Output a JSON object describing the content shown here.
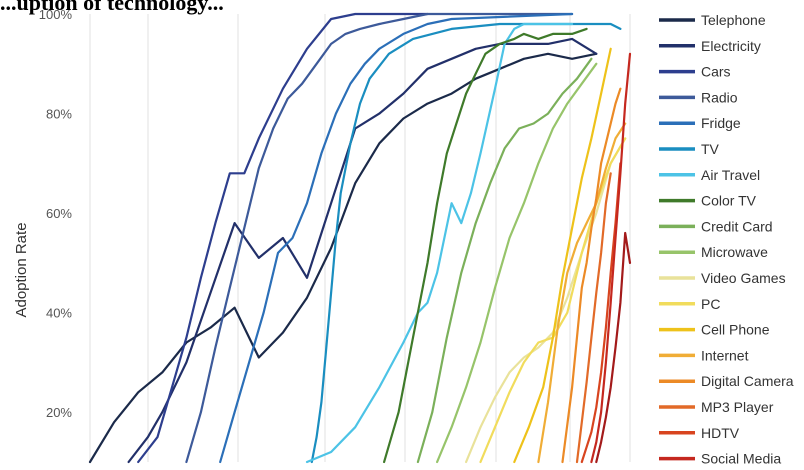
{
  "header": {
    "title_fragment": "...uption of technology..."
  },
  "chart_data": {
    "type": "line",
    "title": "",
    "xlabel": "",
    "ylabel": "Adoption Rate",
    "ylim": [
      10,
      100
    ],
    "xlim": [
      1900,
      2012
    ],
    "yticks": [
      20,
      40,
      60,
      80,
      100
    ],
    "ytick_labels": [
      "20%",
      "40%",
      "60%",
      "80%",
      "100%"
    ],
    "grid": "vertical-lines",
    "legend_position": "right",
    "series": [
      {
        "name": "Telephone",
        "color": "#1b2a4a",
        "x": [
          1900,
          1905,
          1910,
          1915,
          1920,
          1925,
          1930,
          1935,
          1940,
          1945,
          1950,
          1955,
          1960,
          1965,
          1970,
          1975,
          1980,
          1985,
          1990,
          1995,
          2000,
          2005
        ],
        "y": [
          10,
          18,
          24,
          28,
          34,
          37,
          41,
          31,
          36,
          43,
          53,
          66,
          74,
          79,
          82,
          84,
          87,
          89,
          91,
          92,
          91,
          92
        ]
      },
      {
        "name": "Electricity",
        "color": "#22306a",
        "x": [
          1908,
          1912,
          1915,
          1920,
          1925,
          1930,
          1935,
          1940,
          1945,
          1950,
          1955,
          1960,
          1965,
          1970,
          1975,
          1980,
          1985,
          1990,
          1995,
          2000,
          2005
        ],
        "y": [
          10,
          15,
          20,
          30,
          44,
          58,
          51,
          55,
          47,
          62,
          77,
          80,
          84,
          89,
          91,
          93,
          94,
          94,
          94,
          95,
          92
        ]
      },
      {
        "name": "Cars",
        "color": "#2d3e8e",
        "x": [
          1910,
          1914,
          1917,
          1920,
          1923,
          1926,
          1929,
          1932,
          1935,
          1940,
          1945,
          1950,
          1955,
          1960,
          1965,
          1970
        ],
        "y": [
          10,
          15,
          25,
          35,
          47,
          58,
          68,
          68,
          75,
          85,
          93,
          99,
          100,
          100,
          100,
          100
        ]
      },
      {
        "name": "Radio",
        "color": "#3d5a9a",
        "x": [
          1920,
          1923,
          1926,
          1929,
          1932,
          1935,
          1938,
          1941,
          1944,
          1947,
          1950,
          1953,
          1956,
          1960,
          1965,
          1970,
          2000
        ],
        "y": [
          10,
          20,
          33,
          45,
          57,
          69,
          77,
          83,
          86,
          90,
          94,
          96,
          97,
          98,
          99,
          100,
          100
        ]
      },
      {
        "name": "Fridge",
        "color": "#2b6fb8",
        "x": [
          1927,
          1930,
          1933,
          1936,
          1939,
          1942,
          1945,
          1948,
          1951,
          1954,
          1957,
          1960,
          1965,
          1970,
          1975,
          2000
        ],
        "y": [
          10,
          20,
          30,
          40,
          52,
          55,
          62,
          72,
          80,
          86,
          90,
          93,
          96,
          98,
          99,
          100
        ]
      },
      {
        "name": "TV",
        "color": "#1a8ec0",
        "x": [
          1946,
          1947,
          1948,
          1949,
          1950,
          1951,
          1952,
          1954,
          1956,
          1958,
          1962,
          1967,
          1975,
          1985,
          1995,
          2008,
          2010
        ],
        "y": [
          10,
          15,
          22,
          33,
          44,
          55,
          64,
          74,
          82,
          87,
          92,
          95,
          97,
          98,
          98,
          98,
          97
        ]
      },
      {
        "name": "Air Travel",
        "color": "#4cc3e6",
        "x": [
          1945,
          1950,
          1955,
          1960,
          1965,
          1968,
          1970,
          1972,
          1975,
          1977,
          1979,
          1981,
          1984,
          1986,
          1988,
          1990,
          2000
        ],
        "y": [
          10,
          12,
          17,
          25,
          34,
          40,
          42,
          48,
          62,
          58,
          64,
          72,
          85,
          94,
          97,
          98,
          98
        ]
      },
      {
        "name": "Color TV",
        "color": "#3f7a2a",
        "x": [
          1961,
          1964,
          1967,
          1970,
          1972,
          1974,
          1976,
          1978,
          1980,
          1982,
          1985,
          1988,
          1990,
          1993,
          1996,
          2000,
          2003
        ],
        "y": [
          10,
          20,
          35,
          50,
          62,
          72,
          78,
          84,
          88,
          92,
          94,
          95,
          96,
          95,
          96,
          96,
          97
        ]
      },
      {
        "name": "Credit Card",
        "color": "#7bb05a",
        "x": [
          1968,
          1971,
          1974,
          1977,
          1980,
          1983,
          1986,
          1989,
          1992,
          1995,
          1998,
          2001,
          2004
        ],
        "y": [
          10,
          20,
          35,
          48,
          58,
          66,
          73,
          77,
          78,
          80,
          84,
          87,
          91
        ]
      },
      {
        "name": "Microwave",
        "color": "#97c46a",
        "x": [
          1972,
          1975,
          1978,
          1981,
          1984,
          1987,
          1990,
          1993,
          1996,
          1999,
          2002,
          2005
        ],
        "y": [
          10,
          17,
          25,
          34,
          45,
          55,
          62,
          70,
          77,
          82,
          86,
          90
        ]
      },
      {
        "name": "Video Games",
        "color": "#e9e29a",
        "x": [
          1978,
          1981,
          1984,
          1987,
          1990,
          1993,
          1996,
          1999,
          2002,
          2005,
          2008,
          2011
        ],
        "y": [
          10,
          17,
          23,
          28,
          31,
          33,
          36,
          43,
          52,
          60,
          70,
          75
        ]
      },
      {
        "name": "PC",
        "color": "#f1dc5c",
        "x": [
          1981,
          1984,
          1987,
          1990,
          1993,
          1996,
          1999,
          2002,
          2005,
          2008,
          2011
        ],
        "y": [
          10,
          17,
          24,
          30,
          34,
          35,
          40,
          52,
          62,
          70,
          75
        ]
      },
      {
        "name": "Cell Phone",
        "color": "#eec21a",
        "x": [
          1988,
          1991,
          1994,
          1996,
          1998,
          2000,
          2002,
          2004,
          2006,
          2008
        ],
        "y": [
          10,
          17,
          25,
          35,
          47,
          57,
          67,
          75,
          84,
          93
        ]
      },
      {
        "name": "Internet",
        "color": "#f0ad36",
        "x": [
          1993,
          1995,
          1997,
          1999,
          2001,
          2003,
          2005,
          2007,
          2009,
          2011
        ],
        "y": [
          10,
          22,
          37,
          48,
          54,
          58,
          62,
          69,
          75,
          78
        ]
      },
      {
        "name": "Digital Camera",
        "color": "#ec8a26",
        "x": [
          1998,
          2000,
          2002,
          2003,
          2004,
          2005,
          2006,
          2007,
          2008,
          2009,
          2010
        ],
        "y": [
          10,
          25,
          45,
          50,
          57,
          63,
          70,
          74,
          78,
          82,
          85
        ]
      },
      {
        "name": "MP3 Player",
        "color": "#e26a28",
        "x": [
          2001,
          2002,
          2003,
          2004,
          2005,
          2006,
          2007,
          2008
        ],
        "y": [
          10,
          18,
          26,
          35,
          44,
          52,
          62,
          68
        ]
      },
      {
        "name": "HDTV",
        "color": "#d8441f",
        "x": [
          2002,
          2003,
          2004,
          2005,
          2006,
          2007,
          2008,
          2009,
          2010
        ],
        "y": [
          10,
          13,
          16,
          21,
          28,
          37,
          48,
          58,
          70
        ]
      },
      {
        "name": "Social Media",
        "color": "#c5281f",
        "x": [
          2004,
          2005,
          2006,
          2007,
          2008,
          2009,
          2010,
          2011,
          2012
        ],
        "y": [
          10,
          14,
          20,
          30,
          42,
          55,
          68,
          82,
          92
        ]
      },
      {
        "name": "",
        "color": "#a31a1a",
        "x": [
          2005,
          2006,
          2007,
          2008,
          2009,
          2010,
          2011,
          2012
        ],
        "y": [
          10,
          14,
          19,
          25,
          33,
          42,
          56,
          50
        ]
      }
    ]
  }
}
